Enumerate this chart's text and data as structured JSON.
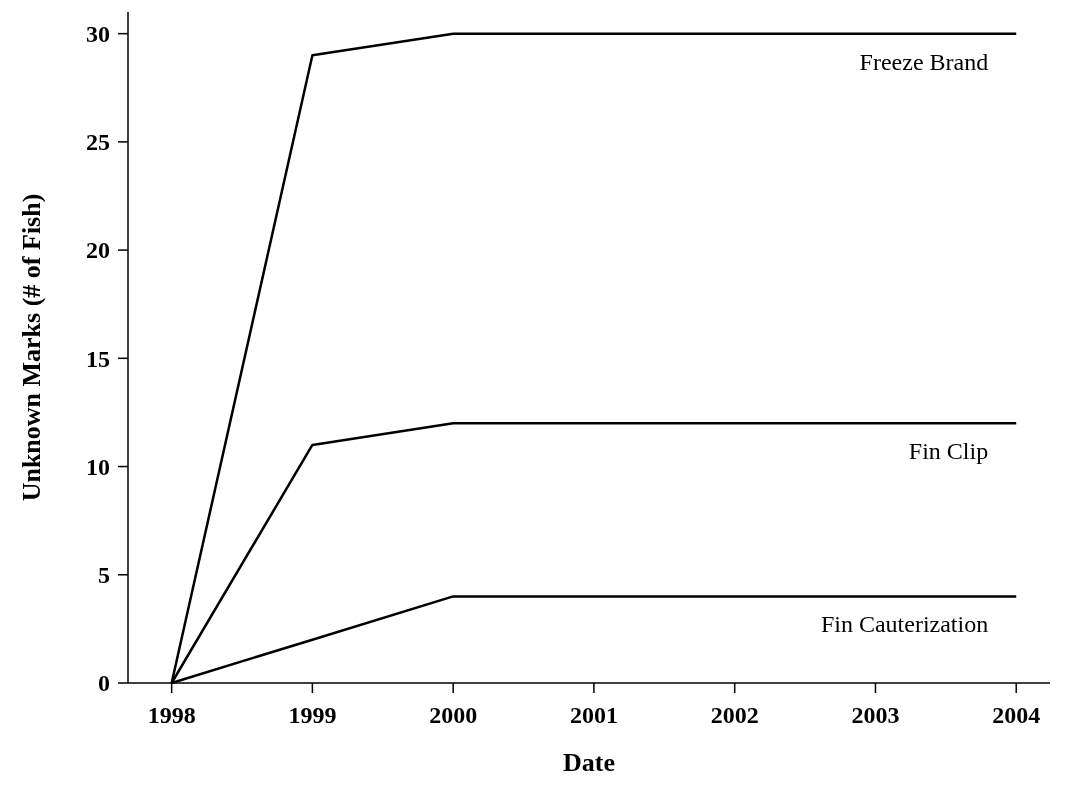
{
  "chart_data": {
    "type": "line",
    "xlabel": "Date",
    "ylabel": "Unknown Marks (# of Fish)",
    "x": [
      1998,
      1999,
      2000,
      2001,
      2002,
      2003,
      2004
    ],
    "series": [
      {
        "name": "Freeze Brand",
        "color": "#000000",
        "values": [
          0,
          29,
          30,
          30,
          30,
          30,
          30
        ]
      },
      {
        "name": "Fin Clip",
        "color": "#000000",
        "values": [
          0,
          11,
          12,
          12,
          12,
          12,
          12
        ]
      },
      {
        "name": "Fin Cauterization",
        "color": "#000000",
        "values": [
          0,
          2,
          4,
          4,
          4,
          4,
          4
        ]
      }
    ],
    "xlim": [
      1997.69,
      2004.24
    ],
    "ylim": [
      0,
      31
    ],
    "xticks": [
      1998,
      1999,
      2000,
      2001,
      2002,
      2003,
      2004
    ],
    "yticks": [
      0,
      5,
      10,
      15,
      20,
      25,
      30
    ],
    "marker": "none",
    "line_style": "solid"
  }
}
